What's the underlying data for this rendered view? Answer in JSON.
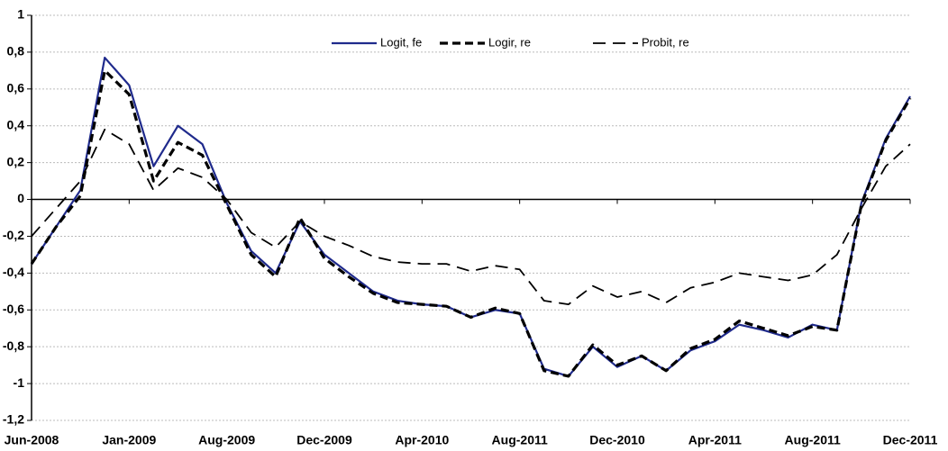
{
  "chart_data": {
    "type": "line",
    "categories": [
      "Jun-2008",
      null,
      null,
      null,
      "Jan-2009",
      null,
      null,
      null,
      "Aug-2009",
      null,
      null,
      null,
      "Dec-2009",
      null,
      null,
      null,
      "Apr-2010",
      null,
      null,
      null,
      "Aug-2011",
      null,
      null,
      null,
      "Dec-2010",
      null,
      null,
      null,
      "Apr-2011",
      null,
      null,
      null,
      "Aug-2011",
      null,
      null,
      null,
      "Dec-2011"
    ],
    "series": [
      {
        "name": "Logit, fe",
        "color": "#1f2a8c",
        "style": "solid",
        "values": [
          -0.35,
          -0.15,
          0.05,
          0.77,
          0.62,
          0.18,
          0.4,
          0.3,
          -0.02,
          -0.28,
          -0.4,
          -0.12,
          -0.3,
          -0.4,
          -0.5,
          -0.55,
          -0.57,
          -0.58,
          -0.64,
          -0.6,
          -0.62,
          -0.92,
          -0.96,
          -0.8,
          -0.91,
          -0.85,
          -0.93,
          -0.82,
          -0.77,
          -0.68,
          -0.71,
          -0.75,
          -0.68,
          -0.71,
          -0.02,
          0.33,
          0.56
        ]
      },
      {
        "name": "Logir, re",
        "color": "#000000",
        "style": "dashed",
        "values": [
          -0.35,
          -0.15,
          0.02,
          0.7,
          0.57,
          0.1,
          0.31,
          0.24,
          -0.03,
          -0.3,
          -0.42,
          -0.1,
          -0.32,
          -0.42,
          -0.51,
          -0.56,
          -0.57,
          -0.58,
          -0.64,
          -0.59,
          -0.62,
          -0.93,
          -0.96,
          -0.79,
          -0.9,
          -0.85,
          -0.93,
          -0.81,
          -0.76,
          -0.66,
          -0.7,
          -0.74,
          -0.69,
          -0.71,
          -0.03,
          0.32,
          0.55
        ]
      },
      {
        "name": "Probit, re",
        "color": "#000000",
        "style": "longdash",
        "values": [
          -0.2,
          -0.05,
          0.1,
          0.38,
          0.3,
          0.05,
          0.17,
          0.12,
          0.0,
          -0.18,
          -0.26,
          -0.12,
          -0.2,
          -0.25,
          -0.31,
          -0.34,
          -0.35,
          -0.35,
          -0.39,
          -0.36,
          -0.38,
          -0.55,
          -0.57,
          -0.47,
          -0.53,
          -0.5,
          -0.56,
          -0.48,
          -0.45,
          -0.4,
          -0.42,
          -0.44,
          -0.41,
          -0.3,
          -0.05,
          0.18,
          0.3
        ]
      }
    ],
    "ylim": [
      -1.2,
      1
    ],
    "yticks": [
      1,
      {
        "value": 0.8,
        "label": "0,8"
      },
      {
        "value": 0.6,
        "label": "0,6"
      },
      {
        "value": 0.4,
        "label": "0,4"
      },
      {
        "value": 0.2,
        "label": "0,2"
      },
      0,
      {
        "value": -0.2,
        "label": "-0,2"
      },
      {
        "value": -0.4,
        "label": "-0,4"
      },
      {
        "value": -0.6,
        "label": "-0,6"
      },
      {
        "value": -0.8,
        "label": "-0,8"
      },
      -1,
      {
        "value": -1.2,
        "label": "-1,2"
      }
    ],
    "grid": true,
    "legend": "top"
  }
}
